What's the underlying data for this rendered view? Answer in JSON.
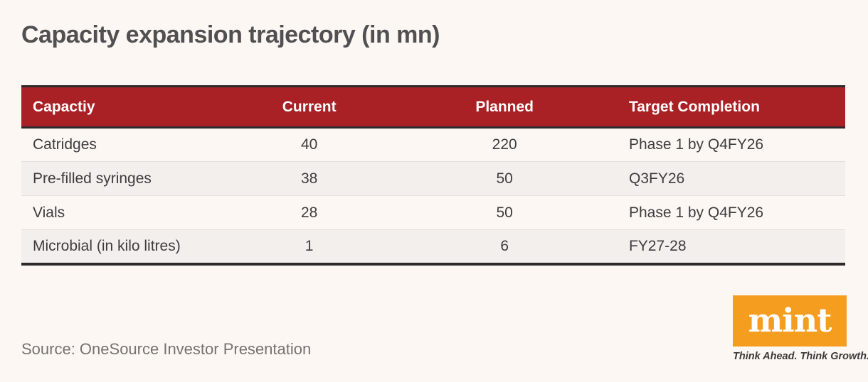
{
  "page": {
    "title": "Capacity expansion trajectory (in mn)",
    "source": "Source: OneSource Investor Presentation"
  },
  "table": {
    "headers": [
      "Capactiy",
      "Current",
      "Planned",
      "Target Completion"
    ],
    "rows": [
      [
        "Catridges",
        "40",
        "220",
        "Phase 1 by Q4FY26"
      ],
      [
        "Pre-filled syringes",
        "38",
        "50",
        "Q3FY26"
      ],
      [
        "Vials",
        "28",
        "50",
        "Phase 1 by Q4FY26"
      ],
      [
        "Microbial (in kilo litres)",
        "1",
        "6",
        "FY27-28"
      ]
    ]
  },
  "branding": {
    "logo_text": "mint",
    "tagline": "Think Ahead. Think Growth."
  },
  "colors": {
    "page_bg": "#fdf7f4",
    "header_bg": "#a92125",
    "header_text": "#ffffff",
    "row_alt_bg": "#f3efed",
    "border_dark": "#2d2a2b",
    "row_divider": "#e5dfdc",
    "title_text": "#505052",
    "cell_text": "#3d3d3d",
    "source_text": "#767272",
    "logo_bg": "#f59d1e",
    "tagline_text": "#3a3a39"
  },
  "chart_data": {
    "type": "table",
    "title": "Capacity expansion trajectory (in mn)",
    "columns": [
      "Capactiy",
      "Current",
      "Planned",
      "Target Completion"
    ],
    "rows": [
      {
        "capacity": "Catridges",
        "current": 40,
        "planned": 220,
        "target_completion": "Phase 1 by Q4FY26"
      },
      {
        "capacity": "Pre-filled syringes",
        "current": 38,
        "planned": 50,
        "target_completion": "Q3FY26"
      },
      {
        "capacity": "Vials",
        "current": 28,
        "planned": 50,
        "target_completion": "Phase 1 by Q4FY26"
      },
      {
        "capacity": "Microbial (in kilo litres)",
        "current": 1,
        "planned": 6,
        "target_completion": "FY27-28"
      }
    ],
    "source": "Source: OneSource Investor Presentation"
  }
}
